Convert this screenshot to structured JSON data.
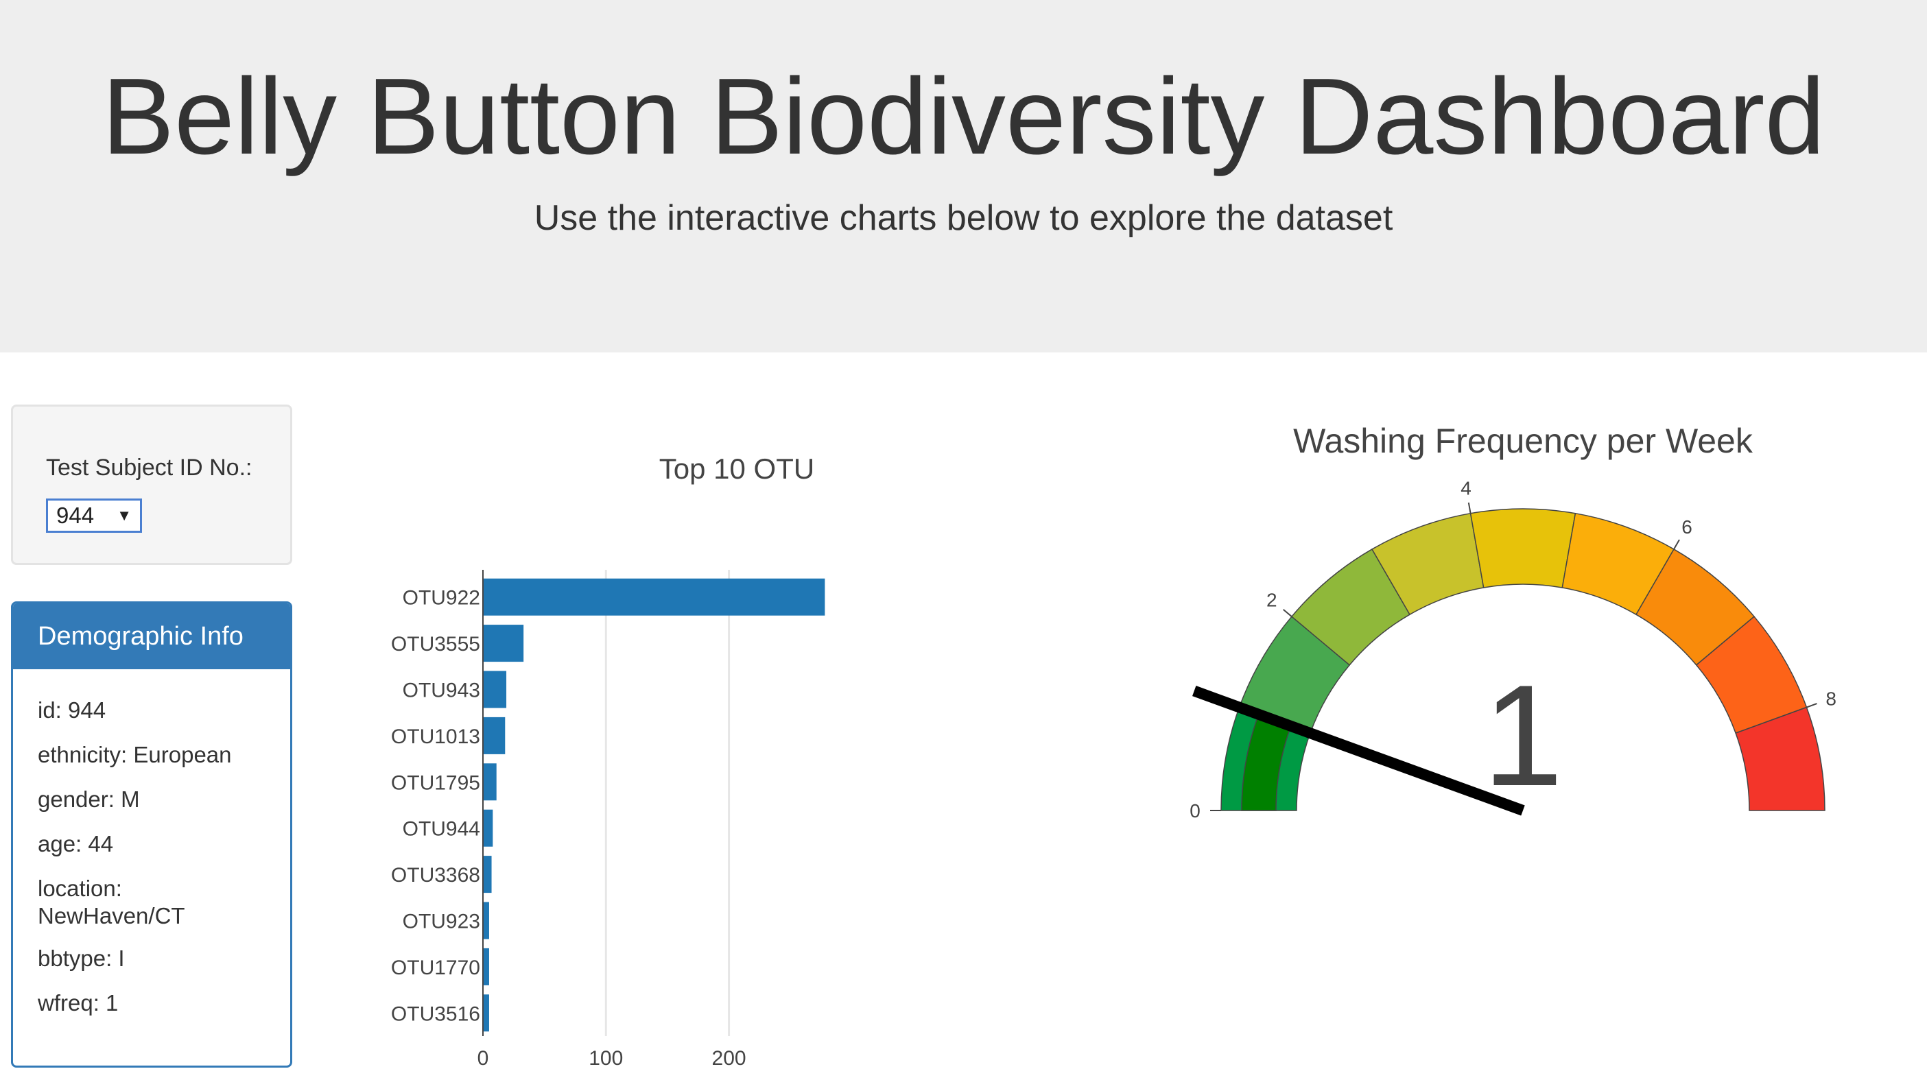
{
  "header": {
    "title": "Belly Button Biodiversity Dashboard",
    "subtitle": "Use the interactive charts below to explore the dataset"
  },
  "selector": {
    "label": "Test Subject ID No.:",
    "selected": "944"
  },
  "demographics": {
    "title": "Demographic Info",
    "rows": [
      "id: 944",
      "ethnicity: European",
      "gender: M",
      "age: 44",
      "location: NewHaven/CT",
      "bbtype: I",
      "wfreq: 1"
    ]
  },
  "chart_data": [
    {
      "type": "bar",
      "orientation": "horizontal",
      "title": "Top 10 OTU",
      "categories": [
        "OTU922",
        "OTU3555",
        "OTU943",
        "OTU1013",
        "OTU1795",
        "OTU944",
        "OTU3368",
        "OTU923",
        "OTU1770",
        "OTU3516"
      ],
      "values": [
        278,
        33,
        19,
        18,
        11,
        8,
        7,
        5,
        5,
        5
      ],
      "xlim": [
        0,
        280
      ],
      "xticks": [
        0,
        100,
        200
      ],
      "grid": true,
      "color": "#1f77b4"
    },
    {
      "type": "gauge",
      "title": "Washing Frequency per Week",
      "value": 1,
      "value_label": "1",
      "range": [
        0,
        9
      ],
      "ticks": [
        0,
        2,
        4,
        6,
        8
      ],
      "band_colors": [
        "#009a44",
        "#48a84f",
        "#8fb83a",
        "#c8c22b",
        "#e7c20a",
        "#fbae0a",
        "#f98b0b",
        "#fd6318",
        "#f3352a"
      ],
      "inner_band_color": "#008000",
      "needle_color": "#000000"
    }
  ]
}
